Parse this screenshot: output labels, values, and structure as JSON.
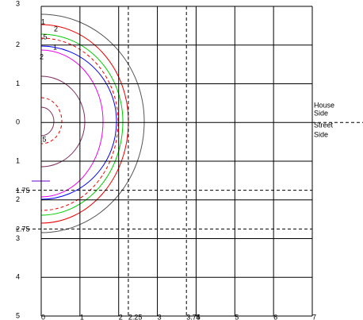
{
  "chart_data": {
    "type": "isoline",
    "xlim": [
      0,
      7
    ],
    "ylim": [
      3,
      -5
    ],
    "xticks": [
      0,
      1,
      2,
      3,
      4,
      5,
      6,
      7
    ],
    "yticks": [
      3,
      2,
      1,
      0,
      {
        "value": -1,
        "label": "1"
      },
      {
        "value": -2,
        "label": "2"
      },
      {
        "value": -3,
        "label": "3"
      },
      {
        "value": -4,
        "label": "4"
      },
      {
        "value": -5,
        "label": "5"
      }
    ],
    "x_reference_lines": [
      2.25,
      3.75
    ],
    "y_reference_lines": [
      {
        "value": -1.75,
        "label": "1.75"
      },
      {
        "value": -2.75,
        "label": "2.75"
      }
    ],
    "contour_labels": [
      1,
      2,
      {
        "value": 0.5,
        "label": ".5"
      },
      1,
      2,
      {
        "value": 0.5,
        "label": ".5"
      }
    ],
    "side_labels": [
      [
        "House",
        "Side"
      ],
      [
        "Street",
        "Side"
      ]
    ]
  }
}
